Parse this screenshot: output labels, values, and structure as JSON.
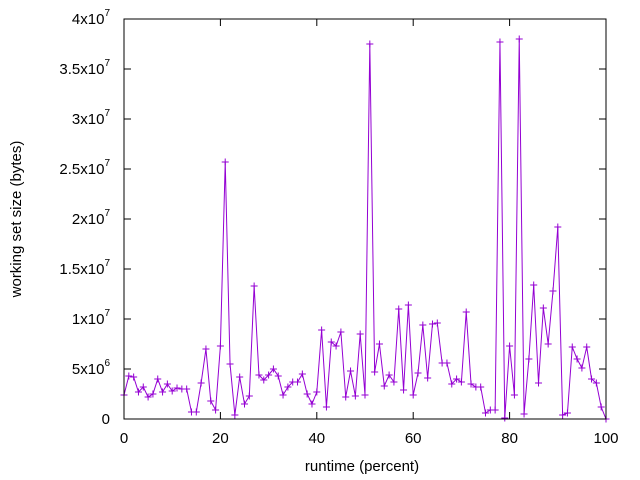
{
  "chart_data": {
    "type": "line",
    "title": "",
    "xlabel": "runtime (percent)",
    "ylabel": "working set size (bytes)",
    "xlim": [
      0,
      100
    ],
    "ylim": [
      0,
      40000000
    ],
    "grid": false,
    "legend": "none",
    "marker": "plus",
    "color": "#9400d3",
    "x_ticks": [
      {
        "value": 0,
        "label": "0"
      },
      {
        "value": 20,
        "label": "20"
      },
      {
        "value": 40,
        "label": "40"
      },
      {
        "value": 60,
        "label": "60"
      },
      {
        "value": 80,
        "label": "80"
      },
      {
        "value": 100,
        "label": "100"
      }
    ],
    "y_ticks": [
      {
        "value": 0,
        "mant": "0",
        "exp": ""
      },
      {
        "value": 5000000,
        "mant": "5x10",
        "exp": "6"
      },
      {
        "value": 10000000,
        "mant": "1x10",
        "exp": "7"
      },
      {
        "value": 15000000,
        "mant": "1.5x10",
        "exp": "7"
      },
      {
        "value": 20000000,
        "mant": "2x10",
        "exp": "7"
      },
      {
        "value": 25000000,
        "mant": "2.5x10",
        "exp": "7"
      },
      {
        "value": 30000000,
        "mant": "3x10",
        "exp": "7"
      },
      {
        "value": 35000000,
        "mant": "3.5x10",
        "exp": "7"
      },
      {
        "value": 40000000,
        "mant": "4x10",
        "exp": "7"
      }
    ],
    "series": [
      {
        "x": [
          0,
          1,
          2,
          3,
          4,
          5,
          6,
          7,
          8,
          9,
          10,
          11,
          12,
          13,
          14,
          15,
          16,
          17,
          18,
          19,
          20,
          21,
          22,
          23,
          24,
          25,
          26,
          27,
          28,
          29,
          30,
          31,
          32,
          33,
          34,
          35,
          36,
          37,
          38,
          39,
          40,
          41,
          42,
          43,
          44,
          45,
          46,
          47,
          48,
          49,
          50,
          51,
          52,
          53,
          54,
          55,
          56,
          57,
          58,
          59,
          60,
          61,
          62,
          63,
          64,
          65,
          66,
          67,
          68,
          69,
          70,
          71,
          72,
          73,
          74,
          75,
          76,
          77,
          78,
          79,
          80,
          81,
          82,
          83,
          84,
          85,
          86,
          87,
          88,
          89,
          90,
          91,
          92,
          93,
          94,
          95,
          96,
          97,
          98,
          99,
          100
        ],
        "values": [
          2400000,
          4300000,
          4200000,
          2700000,
          3200000,
          2200000,
          2500000,
          4000000,
          2700000,
          3500000,
          2800000,
          3100000,
          3000000,
          3000000,
          700000,
          700000,
          3600000,
          7000000,
          1800000,
          900000,
          7300000,
          25700000,
          5500000,
          400000,
          4200000,
          1500000,
          2300000,
          13300000,
          4400000,
          3900000,
          4400000,
          5000000,
          4300000,
          2400000,
          3200000,
          3700000,
          3700000,
          4500000,
          2500000,
          1500000,
          2700000,
          8900000,
          1200000,
          7700000,
          7300000,
          8700000,
          2200000,
          4800000,
          2300000,
          8500000,
          2400000,
          37500000,
          4700000,
          7500000,
          3300000,
          4400000,
          3700000,
          11000000,
          2900000,
          11400000,
          2400000,
          4600000,
          9400000,
          4100000,
          9500000,
          9600000,
          5600000,
          5600000,
          3500000,
          4000000,
          3700000,
          10700000,
          3500000,
          3200000,
          3200000,
          600000,
          900000,
          900000,
          37700000,
          100000,
          7300000,
          2400000,
          38000000,
          500000,
          6000000,
          13400000,
          3600000,
          11100000,
          7500000,
          12800000,
          19200000,
          400000,
          600000,
          7200000,
          6000000,
          5100000,
          7200000,
          4000000,
          3600000,
          1200000,
          0
        ]
      }
    ]
  }
}
